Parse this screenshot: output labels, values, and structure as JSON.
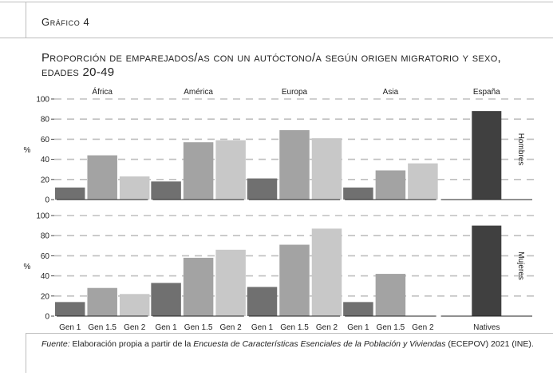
{
  "figure_label": "Gráfico 4",
  "chart_data": {
    "type": "bar",
    "title": "Proporción de emparejados/as con un autóctono/a según origen migratorio y sexo, edades 20-49",
    "ylabel": "%",
    "ylim": [
      0,
      100
    ],
    "yticks": [
      0,
      20,
      40,
      60,
      80,
      100
    ],
    "grid": true,
    "regions": [
      "África",
      "América",
      "Europa",
      "Asia",
      "España"
    ],
    "rows": [
      "Hombres",
      "Mujeres"
    ],
    "generations": [
      "Gen 1",
      "Gen 1.5",
      "Gen 2"
    ],
    "natives_label": "Natives",
    "colors": {
      "Gen 1": "#707070",
      "Gen 1.5": "#a3a3a3",
      "Gen 2": "#c8c8c8",
      "Nativos": "#404040"
    },
    "panels": {
      "Hombres": {
        "África": [
          12,
          44,
          23
        ],
        "América": [
          18,
          57,
          59
        ],
        "Europa": [
          21,
          69,
          61
        ],
        "Asia": [
          12,
          29,
          36
        ],
        "España": [
          88
        ]
      },
      "Mujeres": {
        "África": [
          14,
          28,
          22
        ],
        "América": [
          33,
          58,
          66
        ],
        "Europa": [
          29,
          71,
          87
        ],
        "Asia": [
          14,
          42,
          0
        ],
        "España": [
          90
        ]
      }
    }
  },
  "source": {
    "label": "Fuente:",
    "text_1": " Elaboración propia a partir de la ",
    "survey": "Encuesta de Características Esenciales de la Población y Viviendas",
    "text_2": " (ECEPOV) 2021 (INE)."
  }
}
